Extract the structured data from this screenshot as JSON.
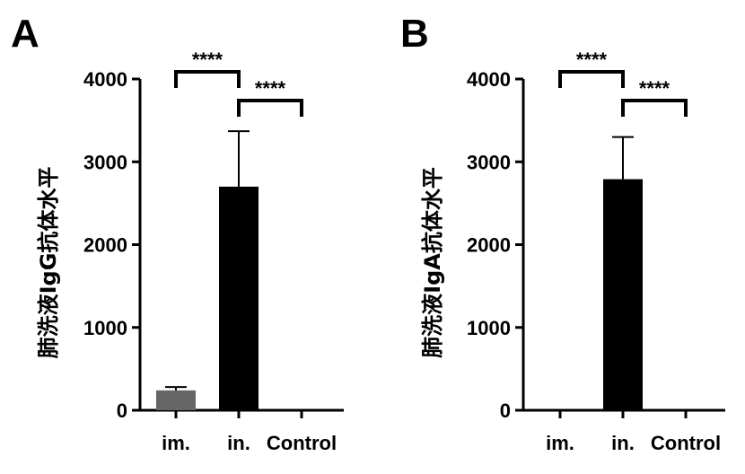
{
  "chart_data": [
    {
      "type": "bar",
      "panel_label": "A",
      "ylabel": "肺洗液IgG抗体水平",
      "categories": [
        "im.",
        "in.",
        "Control"
      ],
      "values": [
        240,
        2700,
        0
      ],
      "error_plus": [
        40,
        670,
        0
      ],
      "bar_colors": [
        "#666666",
        "#000000",
        "#000000"
      ],
      "ylim": [
        0,
        4000
      ],
      "yticks": [
        0,
        1000,
        2000,
        3000,
        4000
      ],
      "ytick_labels": [
        "0",
        "1000",
        "2000",
        "3000",
        "4000"
      ],
      "significance": [
        {
          "from": "im.",
          "to": "in.",
          "label": "****"
        },
        {
          "from": "in.",
          "to": "Control",
          "label": "****"
        }
      ]
    },
    {
      "type": "bar",
      "panel_label": "B",
      "ylabel": "肺洗液IgA抗体水平",
      "categories": [
        "im.",
        "in.",
        "Control"
      ],
      "values": [
        0,
        2790,
        0
      ],
      "error_plus": [
        0,
        510,
        0
      ],
      "bar_colors": [
        "#000000",
        "#000000",
        "#000000"
      ],
      "ylim": [
        0,
        4000
      ],
      "yticks": [
        0,
        1000,
        2000,
        3000,
        4000
      ],
      "ytick_labels": [
        "0",
        "1000",
        "2000",
        "3000",
        "4000"
      ],
      "significance": [
        {
          "from": "im.",
          "to": "in.",
          "label": "****"
        },
        {
          "from": "in.",
          "to": "Control",
          "label": "****"
        }
      ]
    }
  ]
}
